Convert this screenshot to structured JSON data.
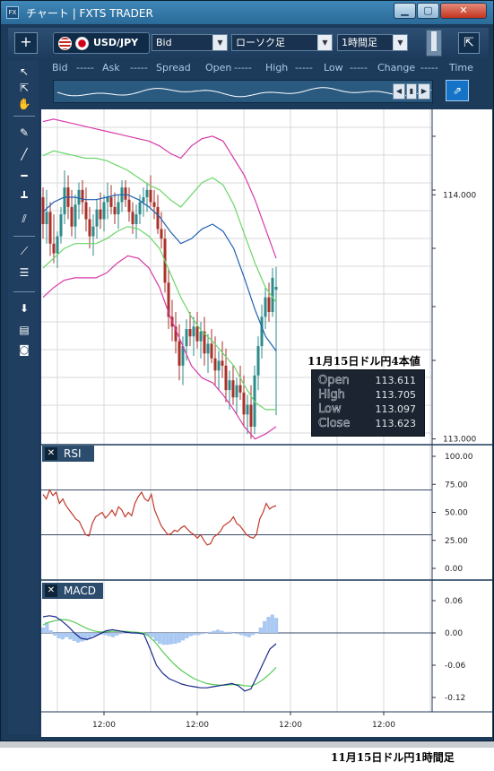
{
  "window": {
    "app_icon": "FX",
    "title": "チャート | FXTS TRADER",
    "min_glyph": "▁",
    "max_glyph": "▢",
    "close_glyph": "✕"
  },
  "toolbar": {
    "add_glyph": "+",
    "pair": "USD/JPY",
    "price_type": "Bid",
    "chart_type": "ローソク足",
    "period": "1時間足",
    "expand_glyph": "⇱"
  },
  "quote_header": {
    "bid": "Bid",
    "bid_val": "-----",
    "ask": "Ask",
    "ask_val": "-----",
    "spread": "Spread",
    "open": "Open",
    "open_val": "-----",
    "high": "High",
    "high_val": "-----",
    "low": "Low",
    "low_val": "-----",
    "change": "Change",
    "change_val": "-----",
    "time": "Time"
  },
  "side_tools": [
    {
      "name": "pointer-icon",
      "glyph": "↖"
    },
    {
      "name": "crosshair-pointer-icon",
      "glyph": "⇱"
    },
    {
      "name": "hand-icon",
      "glyph": "✋"
    },
    {
      "name": "pencil-icon",
      "glyph": "✎"
    },
    {
      "name": "trendline-icon",
      "glyph": "╱"
    },
    {
      "name": "horizontal-line-icon",
      "glyph": "━"
    },
    {
      "name": "vertical-line-icon",
      "glyph": "┻"
    },
    {
      "name": "parallel-lines-icon",
      "glyph": "⫽"
    },
    {
      "name": "fan-icon",
      "glyph": "⟋"
    },
    {
      "name": "fibonacci-icon",
      "glyph": "☰"
    },
    {
      "name": "download-icon",
      "glyph": "⬇"
    },
    {
      "name": "list-icon",
      "glyph": "▤"
    },
    {
      "name": "camera-icon",
      "glyph": "◙"
    }
  ],
  "ohlc_panel": {
    "caption": "11月15日ドル円4本値",
    "open_label": "Open",
    "open": "113.611",
    "high_label": "High",
    "high": "113.705",
    "low_label": "Low",
    "low": "113.097",
    "close_label": "Close",
    "close": "113.623"
  },
  "rsi_panel": {
    "label": "RSI",
    "close_glyph": "✕"
  },
  "macd_panel": {
    "label": "MACD",
    "close_glyph": "✕"
  },
  "footer_caption": "11月15日ドル円1時間足",
  "colors": {
    "bull": "#2e8b8b",
    "bear": "#a8322a",
    "bollinger_outer": "#d63aa8",
    "bollinger_inner": "#6ad66a",
    "ma": "#1f5fb0",
    "rsi": "#c0392b",
    "macd": "#1b2a8a",
    "signal": "#55cc55",
    "histogram": "#a9c8f2"
  },
  "chart_data": [
    {
      "type": "candlestick",
      "y_ticks": [
        "114.000",
        "113.000"
      ],
      "ylim": [
        112.98,
        114.35
      ],
      "x_ticks": [
        "12:00",
        "12:00",
        "12:00",
        "12:00"
      ],
      "candles": [
        [
          113.99,
          114.03,
          113.82,
          113.88
        ],
        [
          113.88,
          114.02,
          113.8,
          113.93
        ],
        [
          113.93,
          113.97,
          113.75,
          113.8
        ],
        [
          113.8,
          113.92,
          113.72,
          113.76
        ],
        [
          113.76,
          113.85,
          113.7,
          113.83
        ],
        [
          113.83,
          113.95,
          113.8,
          113.92
        ],
        [
          113.92,
          114.1,
          113.88,
          114.03
        ],
        [
          114.03,
          114.08,
          113.9,
          113.95
        ],
        [
          113.95,
          114.02,
          113.83,
          113.87
        ],
        [
          113.87,
          114.0,
          113.82,
          113.96
        ],
        [
          113.96,
          114.05,
          113.9,
          114.02
        ],
        [
          114.02,
          114.06,
          113.92,
          113.97
        ],
        [
          113.97,
          114.03,
          113.85,
          113.9
        ],
        [
          113.9,
          113.95,
          113.78,
          113.83
        ],
        [
          113.83,
          113.92,
          113.75,
          113.87
        ],
        [
          113.87,
          113.98,
          113.82,
          113.94
        ],
        [
          113.94,
          114.01,
          113.86,
          113.9
        ],
        [
          113.9,
          114.0,
          113.85,
          113.97
        ],
        [
          113.97,
          114.05,
          113.9,
          113.99
        ],
        [
          113.99,
          114.04,
          113.92,
          113.95
        ],
        [
          113.95,
          114.01,
          113.88,
          113.92
        ],
        [
          113.92,
          114.0,
          113.86,
          113.97
        ],
        [
          113.97,
          114.06,
          113.93,
          114.03
        ],
        [
          114.03,
          114.06,
          113.95,
          113.98
        ],
        [
          113.98,
          114.03,
          113.89,
          113.93
        ],
        [
          113.93,
          113.97,
          113.84,
          113.88
        ],
        [
          113.88,
          113.96,
          113.82,
          113.92
        ],
        [
          113.92,
          114.0,
          113.88,
          113.97
        ],
        [
          113.97,
          114.03,
          113.91,
          113.99
        ],
        [
          113.99,
          114.05,
          113.93,
          114.02
        ],
        [
          114.02,
          114.08,
          113.95,
          113.97
        ],
        [
          113.97,
          114.02,
          113.9,
          113.95
        ],
        [
          113.95,
          114.0,
          113.84,
          113.86
        ],
        [
          113.86,
          113.93,
          113.78,
          113.82
        ],
        [
          113.82,
          113.86,
          113.6,
          113.64
        ],
        [
          113.64,
          113.7,
          113.45,
          113.5
        ],
        [
          113.5,
          113.57,
          113.4,
          113.46
        ],
        [
          113.46,
          113.52,
          113.35,
          113.4
        ],
        [
          113.4,
          113.47,
          113.24,
          113.3
        ],
        [
          113.3,
          113.42,
          113.22,
          113.38
        ],
        [
          113.38,
          113.49,
          113.32,
          113.45
        ],
        [
          113.45,
          113.52,
          113.38,
          113.42
        ],
        [
          113.42,
          113.5,
          113.34,
          113.46
        ],
        [
          113.46,
          113.52,
          113.37,
          113.4
        ],
        [
          113.4,
          113.48,
          113.33,
          113.44
        ],
        [
          113.44,
          113.5,
          113.3,
          113.35
        ],
        [
          113.35,
          113.43,
          113.27,
          113.39
        ],
        [
          113.39,
          113.45,
          113.31,
          113.33
        ],
        [
          113.33,
          113.42,
          113.22,
          113.28
        ],
        [
          113.28,
          113.36,
          113.2,
          113.32
        ],
        [
          113.32,
          113.4,
          113.25,
          113.3
        ],
        [
          113.3,
          113.37,
          113.15,
          113.2
        ],
        [
          113.2,
          113.28,
          113.12,
          113.24
        ],
        [
          113.24,
          113.3,
          113.14,
          113.17
        ],
        [
          113.17,
          113.25,
          113.1,
          113.22
        ],
        [
          113.22,
          113.3,
          113.16,
          113.19
        ],
        [
          113.19,
          113.26,
          113.05,
          113.1
        ],
        [
          113.1,
          113.18,
          113.02,
          113.14
        ],
        [
          113.14,
          113.22,
          113.0,
          113.05
        ],
        [
          113.05,
          113.3,
          113.02,
          113.26
        ],
        [
          113.26,
          113.42,
          113.2,
          113.38
        ],
        [
          113.38,
          113.55,
          113.33,
          113.5
        ],
        [
          113.5,
          113.62,
          113.45,
          113.58
        ],
        [
          113.58,
          113.64,
          113.48,
          113.52
        ],
        [
          113.52,
          113.7,
          113.5,
          113.66
        ],
        [
          113.611,
          113.705,
          113.097,
          113.623
        ]
      ],
      "bollinger_upper": [
        114.3,
        114.31,
        114.3,
        114.29,
        114.28,
        114.27,
        114.26,
        114.25,
        114.24,
        114.23,
        114.22,
        114.2,
        114.17,
        114.15,
        114.2,
        114.23,
        114.24,
        114.22,
        114.15,
        114.08,
        113.98,
        113.86,
        113.74
      ],
      "bollinger_mid_upper": [
        114.16,
        114.18,
        114.17,
        114.16,
        114.15,
        114.15,
        114.14,
        114.12,
        114.1,
        114.07,
        114.04,
        114.02,
        113.98,
        113.95,
        114.0,
        114.05,
        114.07,
        114.04,
        113.96,
        113.84,
        113.72,
        113.62,
        113.56
      ],
      "moving_average": [
        113.93,
        113.97,
        113.99,
        113.99,
        113.98,
        113.98,
        113.99,
        114.0,
        114.0,
        113.98,
        113.95,
        113.91,
        113.85,
        113.8,
        113.82,
        113.86,
        113.88,
        113.85,
        113.78,
        113.66,
        113.53,
        113.42,
        113.36
      ],
      "bollinger_mid_lower": [
        113.7,
        113.74,
        113.78,
        113.8,
        113.8,
        113.8,
        113.82,
        113.85,
        113.87,
        113.86,
        113.83,
        113.78,
        113.68,
        113.58,
        113.5,
        113.44,
        113.4,
        113.35,
        113.3,
        113.22,
        113.15,
        113.12,
        113.12
      ],
      "bollinger_lower": [
        113.58,
        113.62,
        113.65,
        113.66,
        113.66,
        113.66,
        113.68,
        113.72,
        113.75,
        113.74,
        113.7,
        113.62,
        113.5,
        113.4,
        113.3,
        113.25,
        113.23,
        113.18,
        113.12,
        113.05,
        113.0,
        113.02,
        113.05
      ]
    },
    {
      "type": "line",
      "title": "RSI",
      "y_ticks": [
        "100.00",
        "75.00",
        "50.00",
        "25.00",
        "0.00"
      ],
      "ylim": [
        0,
        100
      ],
      "reference_lines": [
        70,
        30
      ],
      "values": [
        66,
        62,
        70,
        65,
        68,
        58,
        62,
        56,
        52,
        48,
        44,
        42,
        36,
        30,
        29,
        40,
        46,
        48,
        50,
        45,
        48,
        52,
        47,
        55,
        52,
        46,
        50,
        47,
        58,
        64,
        68,
        62,
        60,
        66,
        52,
        45,
        38,
        34,
        30,
        31,
        34,
        33,
        36,
        38,
        35,
        32,
        30,
        27,
        30,
        25,
        21,
        22,
        28,
        30,
        33,
        38,
        40,
        42,
        46,
        40,
        38,
        34,
        30,
        28,
        27,
        30,
        44,
        50,
        58,
        53,
        55,
        56
      ]
    },
    {
      "type": "bar+line",
      "title": "MACD",
      "y_ticks": [
        "0.06",
        "0.00",
        "-0.06",
        "-0.12"
      ],
      "ylim": [
        -0.13,
        0.08
      ],
      "histogram": [
        0.01,
        0.02,
        0.005,
        -0.005,
        -0.01,
        -0.012,
        -0.008,
        -0.012,
        -0.015,
        -0.018,
        -0.016,
        -0.014,
        -0.01,
        -0.006,
        -0.004,
        -0.003,
        -0.004,
        -0.006,
        -0.008,
        -0.005,
        -0.002,
        -0.001,
        0.0,
        0.0,
        -0.002,
        -0.002,
        -0.003,
        -0.005,
        -0.008,
        -0.015,
        -0.02,
        -0.022,
        -0.022,
        -0.021,
        -0.02,
        -0.018,
        -0.014,
        -0.01,
        -0.006,
        -0.004,
        -0.004,
        -0.002,
        0.0,
        0.002,
        0.004,
        0.006,
        0.004,
        0.002,
        0.002,
        0.0,
        -0.002,
        -0.004,
        -0.006,
        -0.008,
        -0.004,
        0.0,
        0.01,
        0.022,
        0.03,
        0.034,
        0.028
      ],
      "macd": [
        0.03,
        0.032,
        0.03,
        0.022,
        0.012,
        0.0,
        -0.01,
        -0.012,
        -0.008,
        -0.002,
        0.004,
        0.006,
        0.004,
        0.002,
        0.0,
        0.0,
        -0.002,
        -0.03,
        -0.06,
        -0.075,
        -0.085,
        -0.09,
        -0.095,
        -0.098,
        -0.1,
        -0.102,
        -0.102,
        -0.1,
        -0.098,
        -0.096,
        -0.094,
        -0.098,
        -0.108,
        -0.104,
        -0.08,
        -0.055,
        -0.03,
        -0.02
      ],
      "signal": [
        0.015,
        0.02,
        0.023,
        0.025,
        0.024,
        0.02,
        0.014,
        0.008,
        0.004,
        0.002,
        0.002,
        0.003,
        0.003,
        0.003,
        0.002,
        0.001,
        0.0,
        -0.008,
        -0.02,
        -0.035,
        -0.048,
        -0.06,
        -0.07,
        -0.078,
        -0.085,
        -0.09,
        -0.094,
        -0.096,
        -0.097,
        -0.097,
        -0.096,
        -0.096,
        -0.098,
        -0.099,
        -0.094,
        -0.086,
        -0.076,
        -0.064
      ]
    }
  ]
}
